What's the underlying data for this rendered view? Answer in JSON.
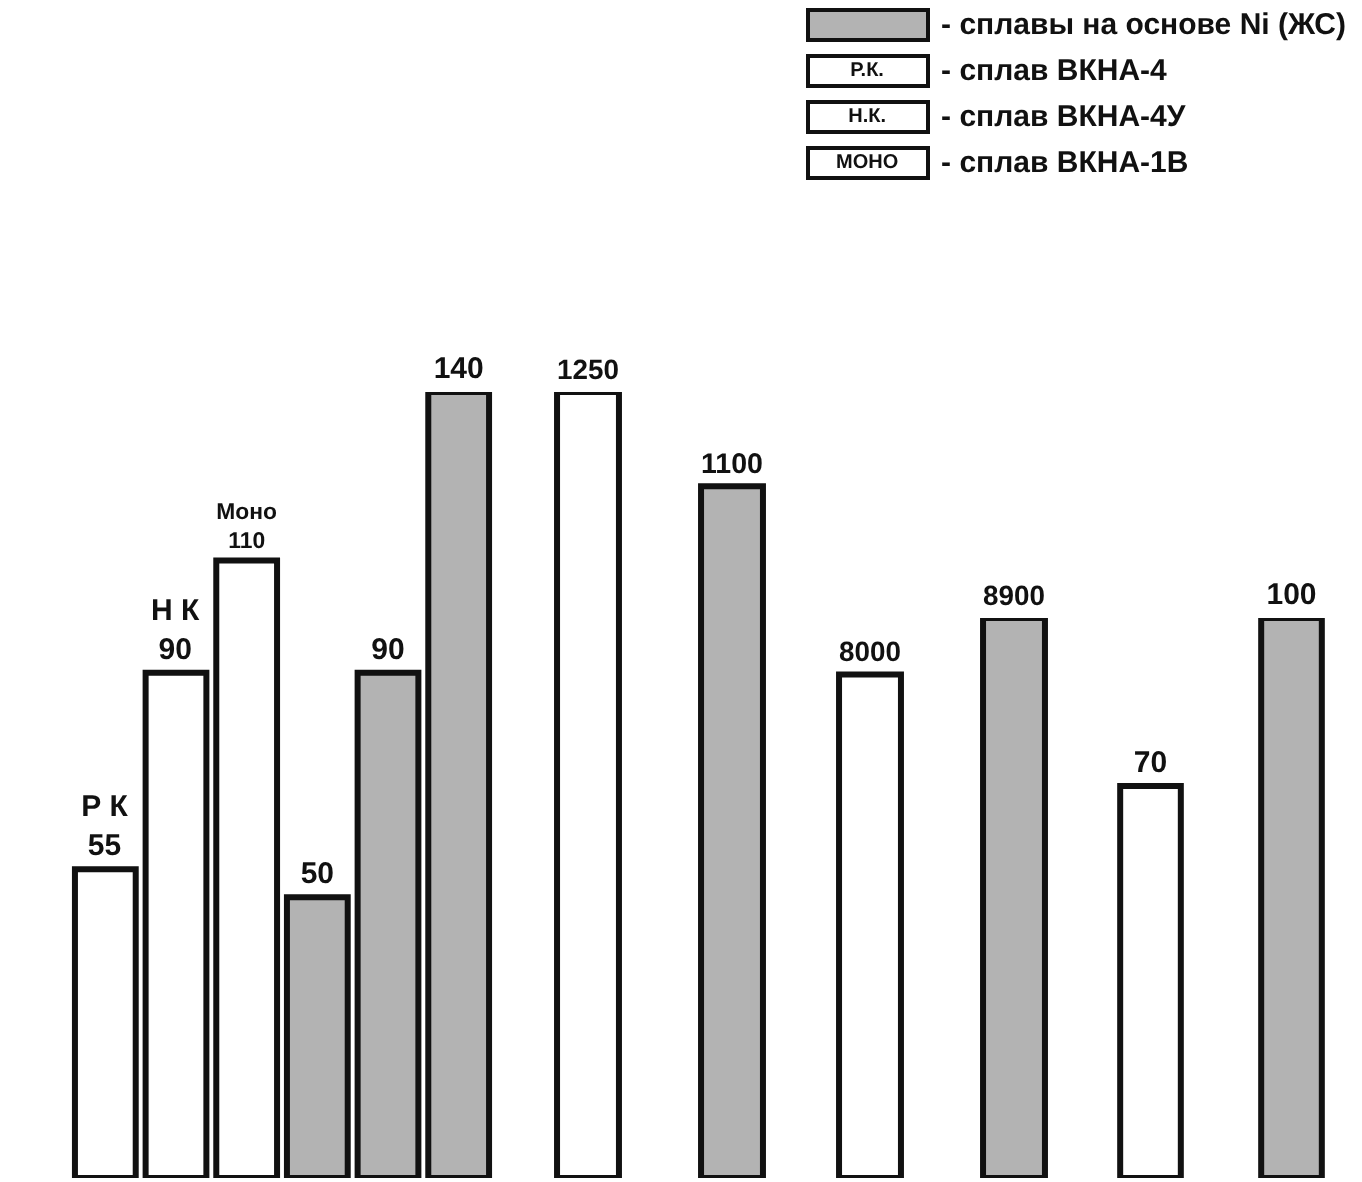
{
  "chart_data": [
    {
      "type": "other",
      "categories": [
        null,
        "Р.К.",
        "Н.К.",
        "МОНО"
      ],
      "colors": [
        "#b3b3b3",
        "#ffffff",
        "#ffffff",
        "#ffffff"
      ],
      "annotations": [
        "- сплавы на основе Ni (ЖС)",
        "- сплав ВКНА-4",
        "- сплав ВКНА-4У",
        "- сплав ВКНА-1В"
      ]
    },
    {
      "type": "bar",
      "categories": [
        null,
        null,
        null,
        null,
        null,
        null
      ],
      "values": [
        55,
        90,
        110,
        50,
        90,
        140
      ],
      "colors": [
        "#ffffff",
        "#ffffff",
        "#ffffff",
        "#b3b3b3",
        "#b3b3b3",
        "#b3b3b3"
      ],
      "value_labels": [
        "Р К\n55",
        "Н К\n90",
        "Моно\n110",
        "50",
        "90",
        "140"
      ]
    },
    {
      "type": "bar",
      "categories": [
        null,
        null
      ],
      "values": [
        1250,
        1100
      ],
      "colors": [
        "#ffffff",
        "#b3b3b3"
      ],
      "data_labels": true
    },
    {
      "type": "bar",
      "categories": [
        null,
        null
      ],
      "values": [
        8000,
        8900
      ],
      "colors": [
        "#ffffff",
        "#b3b3b3"
      ],
      "data_labels": true
    },
    {
      "type": "bar",
      "categories": [
        null,
        null
      ],
      "values": [
        70,
        100
      ],
      "colors": [
        "#ffffff",
        "#b3b3b3"
      ],
      "data_labels": true
    }
  ]
}
